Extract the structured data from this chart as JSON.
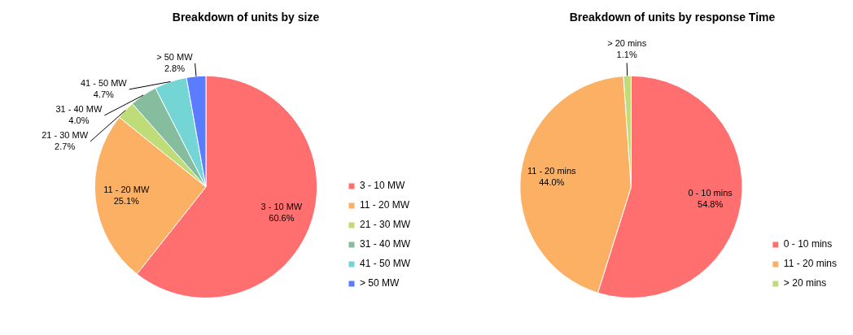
{
  "chart_data": [
    {
      "type": "pie",
      "title": "Breakdown of units by size",
      "categories": [
        "3 - 10 MW",
        "11 - 20 MW",
        "21 - 30 MW",
        "31 - 40 MW",
        "41 - 50 MW",
        "> 50 MW"
      ],
      "values": [
        60.6,
        25.1,
        2.7,
        4.0,
        4.7,
        2.8
      ],
      "value_labels": [
        "60.6%",
        "25.1%",
        "2.7%",
        "4.0%",
        "4.7%",
        "2.8%"
      ],
      "colors": [
        "#ff6f6f",
        "#fcb064",
        "#bedd78",
        "#86bd9e",
        "#74d6d4",
        "#5a7cff"
      ],
      "legend": "bottom right"
    },
    {
      "type": "pie",
      "title": "Breakdown of units by response Time",
      "categories": [
        "0 - 10 mins",
        "11 - 20 mins",
        "> 20 mins"
      ],
      "values": [
        54.8,
        44.0,
        1.1
      ],
      "value_labels": [
        "54.8%",
        "44.0%",
        "1.1%"
      ],
      "colors": [
        "#ff6f6f",
        "#fcb064",
        "#bedd78"
      ],
      "legend": "bottom right"
    }
  ]
}
